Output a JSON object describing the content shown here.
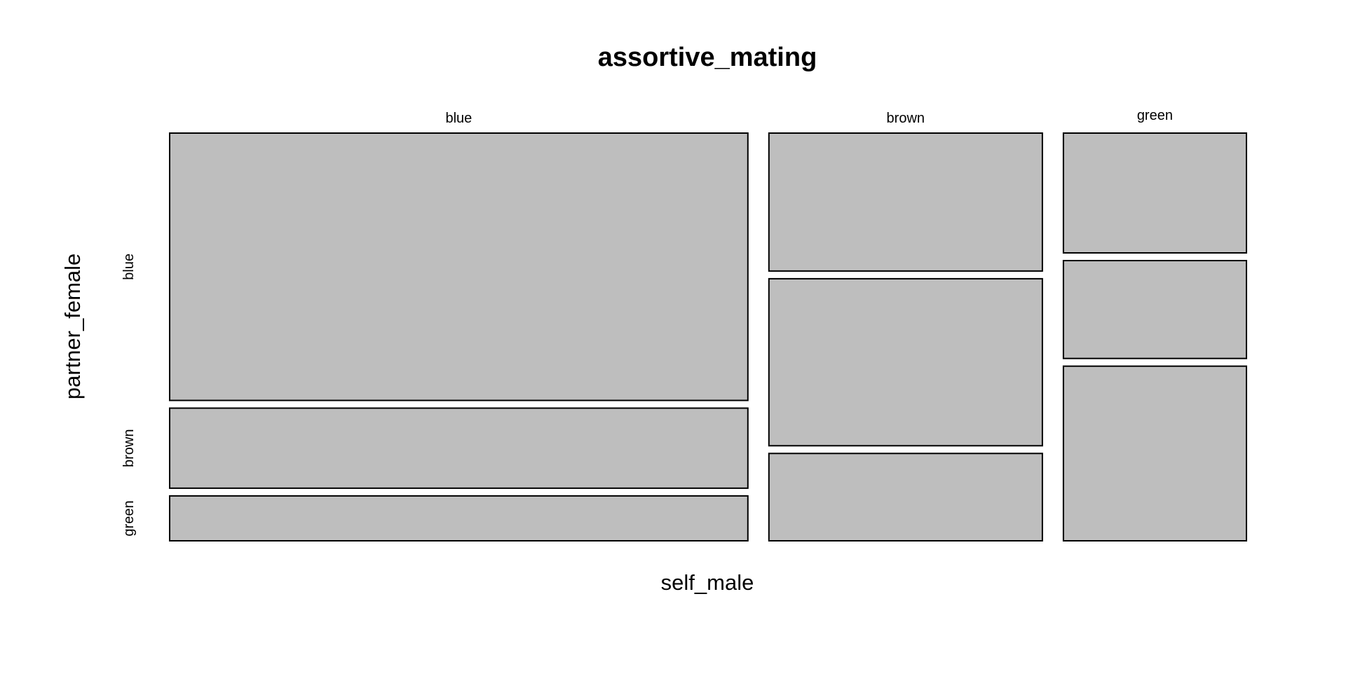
{
  "chart_data": {
    "type": "mosaic",
    "title": "assortive_mating",
    "xlabel": "self_male",
    "ylabel": "partner_female",
    "x_categories": [
      "blue",
      "brown",
      "green"
    ],
    "y_categories": [
      "blue",
      "brown",
      "green"
    ],
    "proportions_note": "column widths = share of self_male; tile heights = share of partner_female within each column",
    "columns": [
      {
        "category": "blue",
        "share": 0.537,
        "segments": [
          {
            "category": "blue",
            "share": 0.661
          },
          {
            "category": "brown",
            "share": 0.198
          },
          {
            "category": "green",
            "share": 0.111
          }
        ]
      },
      {
        "category": "brown",
        "share": 0.254,
        "segments": [
          {
            "category": "blue",
            "share": 0.341
          },
          {
            "category": "brown",
            "share": 0.413
          },
          {
            "category": "green",
            "share": 0.216
          }
        ]
      },
      {
        "category": "green",
        "share": 0.17,
        "segments": [
          {
            "category": "blue",
            "share": 0.295
          },
          {
            "category": "brown",
            "share": 0.241
          },
          {
            "category": "green",
            "share": 0.43
          }
        ]
      }
    ],
    "fill_color": "#bebebe",
    "border_color": "#000000",
    "grid": false,
    "legend": "none"
  }
}
